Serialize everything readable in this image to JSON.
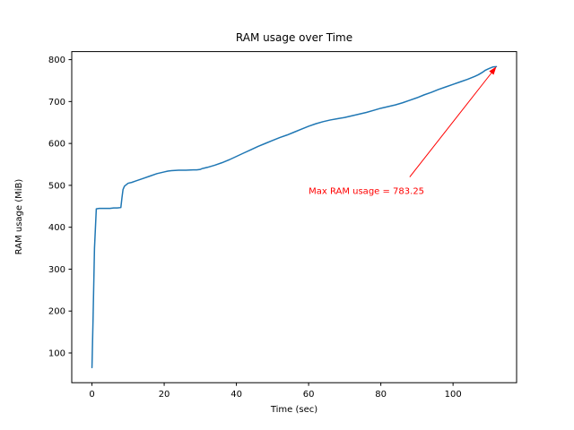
{
  "chart_data": {
    "type": "line",
    "title": "RAM usage over Time",
    "xlabel": "Time (sec)",
    "ylabel": "RAM usage (MiB)",
    "xlim": [
      -5.6,
      117.6
    ],
    "ylim": [
      29,
      819.2
    ],
    "xticks": [
      0,
      20,
      40,
      60,
      80,
      100
    ],
    "yticks": [
      100,
      200,
      300,
      400,
      500,
      600,
      700,
      800
    ],
    "grid": false,
    "legend": false,
    "line_color": "#1f77b4",
    "x": [
      0,
      0.3,
      0.7,
      1.2,
      2,
      3,
      4,
      5,
      6,
      7,
      8,
      8.3,
      8.6,
      9,
      10,
      11,
      12,
      14,
      16,
      18,
      20,
      21,
      22,
      24,
      26,
      28,
      29,
      30,
      30.5,
      31,
      32,
      34,
      36,
      38,
      40,
      42,
      44,
      46,
      48,
      50,
      52,
      54,
      56,
      58,
      60,
      62,
      64,
      66,
      68,
      70,
      72,
      74,
      76,
      78,
      80,
      82,
      84,
      86,
      88,
      90,
      92,
      94,
      96,
      98,
      100,
      102,
      104,
      106,
      107,
      108,
      109,
      110,
      111,
      112
    ],
    "y": [
      65,
      180,
      350,
      444,
      445,
      445,
      445,
      445,
      446,
      446,
      447,
      470,
      490,
      498,
      505,
      507,
      510,
      516,
      522,
      528,
      532,
      534,
      535,
      536,
      536,
      537,
      537,
      538,
      540,
      541,
      543,
      548,
      554,
      561,
      569,
      577,
      585,
      593,
      600,
      607,
      614,
      620,
      627,
      634,
      641,
      647,
      652,
      656,
      659,
      662,
      666,
      670,
      674,
      679,
      684,
      688,
      692,
      697,
      703,
      709,
      716,
      722,
      729,
      735,
      741,
      747,
      753,
      760,
      764,
      769,
      775,
      779,
      782.5,
      783.25
    ],
    "max_value": 783.25,
    "annotation": {
      "text": "Max RAM usage = 783.25",
      "color": "#ff0000",
      "xy": [
        112,
        783.25
      ],
      "text_xy": [
        60,
        480
      ],
      "arrow_from": [
        88,
        520
      ]
    }
  }
}
